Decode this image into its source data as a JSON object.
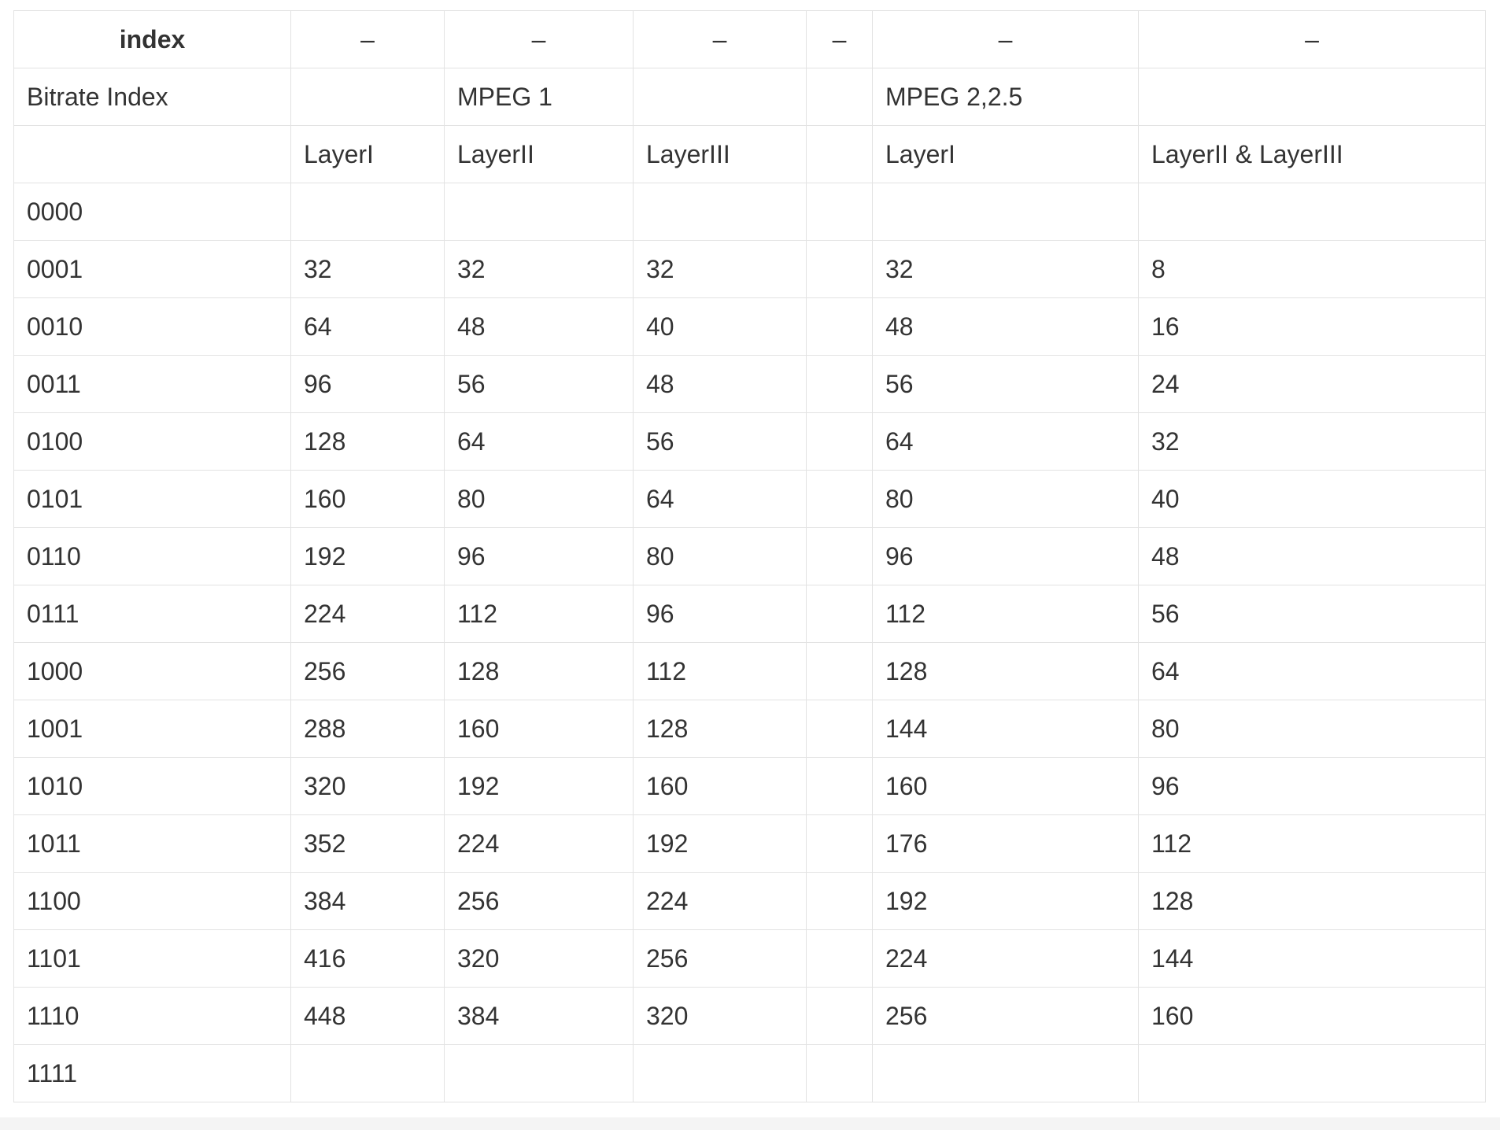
{
  "header": [
    "index",
    "–",
    "–",
    "–",
    "–",
    "–",
    "–"
  ],
  "rows": [
    [
      "Bitrate Index",
      "",
      "MPEG 1",
      "",
      "",
      "MPEG 2,2.5",
      ""
    ],
    [
      "",
      "LayerI",
      "LayerII",
      "LayerIII",
      "",
      "LayerI",
      "LayerII & LayerIII"
    ],
    [
      "0000",
      "",
      "",
      "",
      "",
      "",
      ""
    ],
    [
      "0001",
      "32",
      "32",
      "32",
      "",
      "32",
      "8"
    ],
    [
      "0010",
      "64",
      "48",
      "40",
      "",
      "48",
      "16"
    ],
    [
      "0011",
      "96",
      "56",
      "48",
      "",
      "56",
      "24"
    ],
    [
      "0100",
      "128",
      "64",
      "56",
      "",
      "64",
      "32"
    ],
    [
      "0101",
      "160",
      "80",
      "64",
      "",
      "80",
      "40"
    ],
    [
      "0110",
      "192",
      "96",
      "80",
      "",
      "96",
      "48"
    ],
    [
      "0111",
      "224",
      "112",
      "96",
      "",
      "112",
      "56"
    ],
    [
      "1000",
      "256",
      "128",
      "112",
      "",
      "128",
      "64"
    ],
    [
      "1001",
      "288",
      "160",
      "128",
      "",
      "144",
      "80"
    ],
    [
      "1010",
      "320",
      "192",
      "160",
      "",
      "160",
      "96"
    ],
    [
      "1011",
      "352",
      "224",
      "192",
      "",
      "176",
      "112"
    ],
    [
      "1100",
      "384",
      "256",
      "224",
      "",
      "192",
      "128"
    ],
    [
      "1101",
      "416",
      "320",
      "256",
      "",
      "224",
      "144"
    ],
    [
      "1110",
      "448",
      "384",
      "320",
      "",
      "256",
      "160"
    ],
    [
      "1111",
      "",
      "",
      "",
      "",
      "",
      ""
    ]
  ]
}
